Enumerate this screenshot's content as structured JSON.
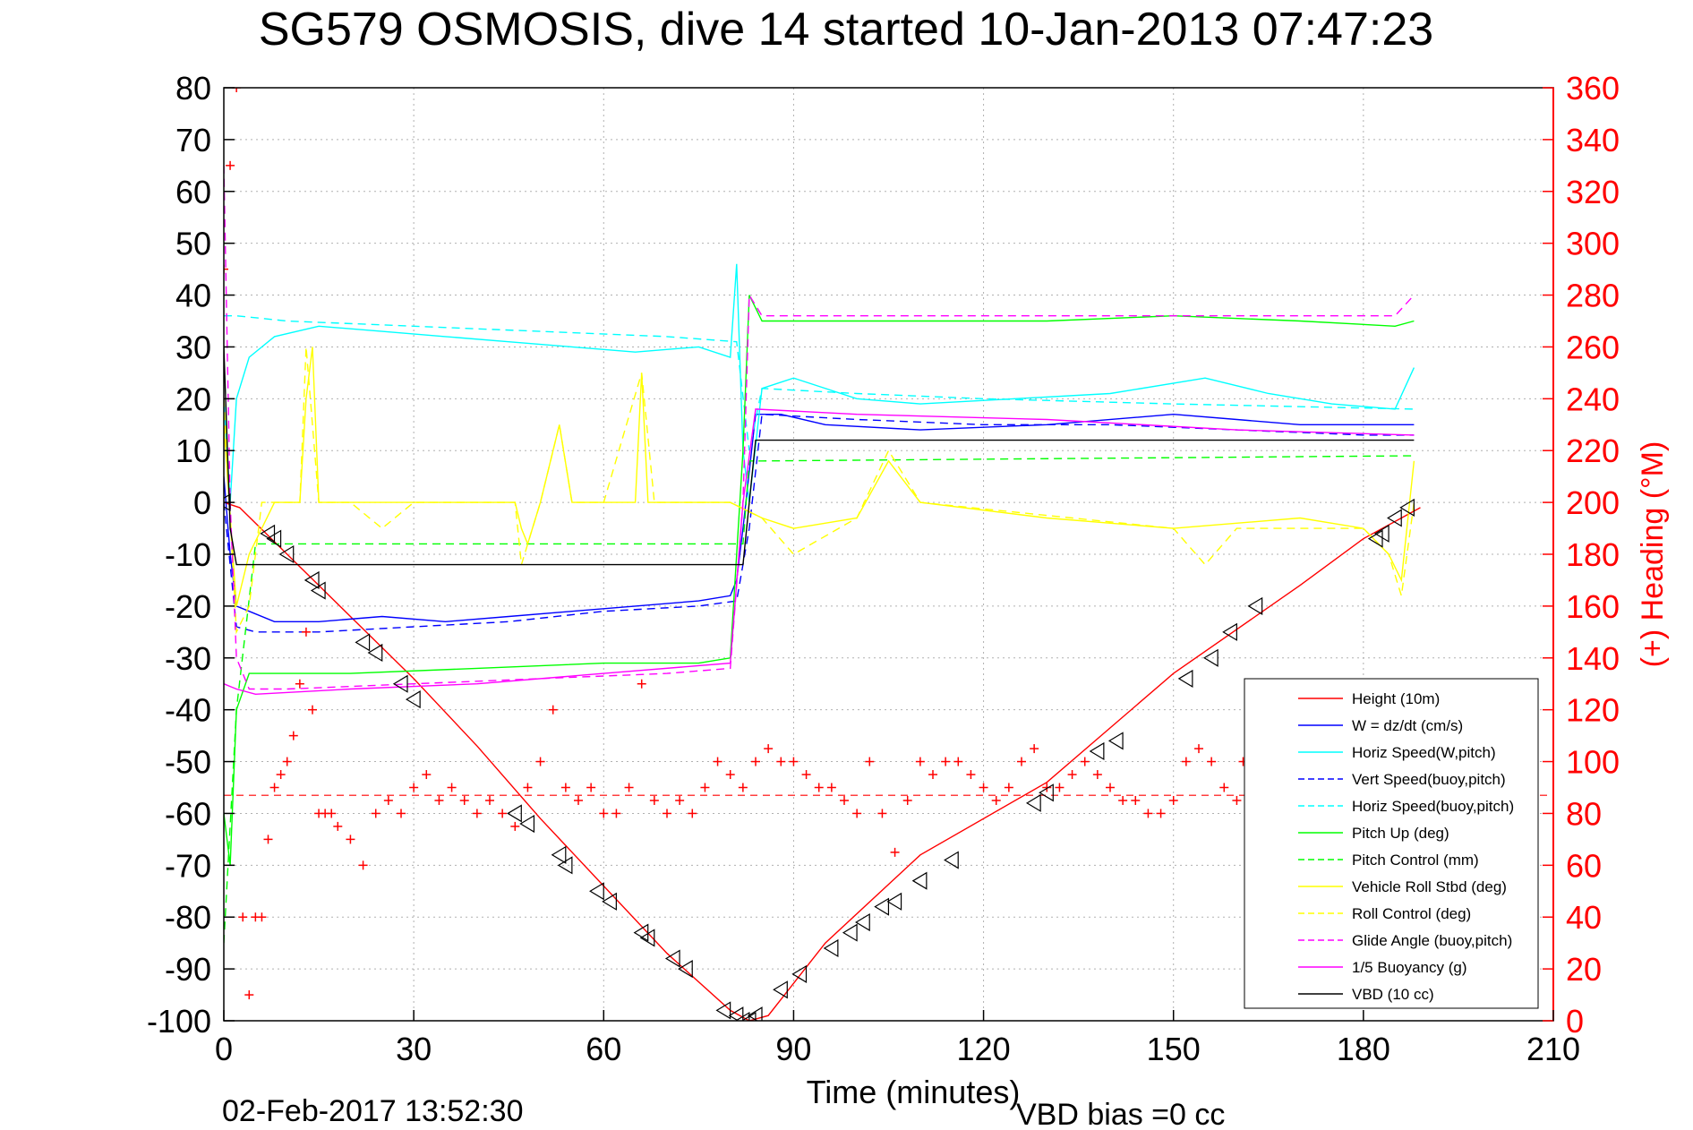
{
  "title": "SG579 OSMOSIS, dive 14 started 10-Jan-2013 07:47:23",
  "footer": {
    "timestamp": "02-Feb-2017 13:52:30",
    "vbd_bias": "VBD bias =0 cc"
  },
  "colors": {
    "height": "#ff0000",
    "w": "#0000ff",
    "horiz_w": "#00ffff",
    "pitch": "#00ff00",
    "roll": "#ffff00",
    "glide": "#ff00ff",
    "vbd": "#000000",
    "heading": "#ff0000"
  },
  "chart_data": {
    "type": "line",
    "title": "SG579 OSMOSIS, dive 14 started 10-Jan-2013 07:47:23",
    "xlabel": "Time (minutes)",
    "ylabel": "",
    "y2label": "(+) Heading (°M)",
    "xlim": [
      0,
      210
    ],
    "ylim": [
      -100,
      80
    ],
    "y2lim": [
      0,
      360
    ],
    "xticks": [
      0,
      30,
      60,
      90,
      120,
      150,
      180,
      210
    ],
    "yticks": [
      80,
      70,
      60,
      50,
      40,
      30,
      20,
      10,
      0,
      -10,
      -20,
      -30,
      -40,
      -50,
      -60,
      -70,
      -80,
      -90,
      -100
    ],
    "y2ticks": [
      360,
      340,
      320,
      300,
      280,
      260,
      240,
      220,
      200,
      180,
      160,
      140,
      120,
      100,
      80,
      60,
      40,
      20,
      0
    ],
    "grid": true,
    "legend_position": "lower-right",
    "series": [
      {
        "name": "Height (10m)",
        "color": "#ff0000",
        "style": "solid",
        "x": [
          0,
          2.5,
          10,
          20,
          30,
          40,
          50,
          60,
          70,
          80,
          83,
          86,
          95,
          110,
          130,
          150,
          170,
          180,
          186,
          189
        ],
        "y": [
          0,
          -1,
          -10,
          -22,
          -34,
          -47,
          -61,
          -74,
          -87,
          -98,
          -100,
          -99,
          -85,
          -68,
          -54,
          -33,
          -16,
          -7,
          -3,
          -1
        ]
      },
      {
        "name": "W = dz/dt (cm/s)",
        "color": "#0000ff",
        "style": "solid",
        "x": [
          0,
          1,
          2,
          4,
          8,
          15,
          25,
          35,
          45,
          55,
          65,
          75,
          80,
          81,
          82,
          84,
          88,
          95,
          110,
          130,
          150,
          160,
          170,
          180,
          186,
          188
        ],
        "y": [
          5,
          -10,
          -20,
          -21,
          -23,
          -23,
          -22,
          -23,
          -22,
          -21,
          -20,
          -19,
          -18,
          -15,
          -5,
          17,
          17,
          15,
          14,
          15,
          17,
          16,
          15,
          15,
          15,
          15
        ]
      },
      {
        "name": "Horiz Speed(W,pitch)",
        "color": "#00ffff",
        "style": "solid",
        "x": [
          0,
          1,
          2,
          4,
          8,
          15,
          25,
          35,
          45,
          55,
          65,
          75,
          80,
          81,
          82,
          83,
          85,
          90,
          100,
          110,
          125,
          140,
          155,
          165,
          175,
          185,
          188
        ],
        "y": [
          20,
          0,
          20,
          28,
          32,
          34,
          33,
          32,
          31,
          30,
          29,
          30,
          28,
          46,
          10,
          0,
          22,
          24,
          20,
          19,
          20,
          21,
          24,
          21,
          19,
          18,
          26
        ]
      },
      {
        "name": "Vert Speed(buoy,pitch)",
        "color": "#0000ff",
        "style": "dashed",
        "x": [
          0,
          2,
          5,
          15,
          30,
          45,
          60,
          75,
          81,
          83,
          85,
          100,
          120,
          140,
          160,
          180,
          188
        ],
        "y": [
          0,
          -24,
          -25,
          -25,
          -24,
          -23,
          -21,
          -20,
          -19,
          -5,
          17,
          16,
          15,
          15,
          14,
          13,
          13
        ]
      },
      {
        "name": "Horiz Speed(buoy,pitch)",
        "color": "#00ffff",
        "style": "dashed",
        "x": [
          0,
          2,
          10,
          30,
          50,
          70,
          81,
          83,
          85,
          100,
          120,
          150,
          188
        ],
        "y": [
          36,
          36,
          35,
          34,
          33,
          32,
          31,
          10,
          22,
          21,
          20,
          19,
          18
        ]
      },
      {
        "name": "Pitch Up (deg)",
        "color": "#00ff00",
        "style": "solid",
        "x": [
          0,
          1,
          2,
          4,
          10,
          20,
          40,
          60,
          75,
          80,
          82,
          83,
          85,
          90,
          110,
          130,
          150,
          170,
          185,
          188
        ],
        "y": [
          -60,
          -70,
          -40,
          -33,
          -33,
          -33,
          -32,
          -31,
          -31,
          -30,
          10,
          40,
          35,
          35,
          35,
          35,
          36,
          35,
          34,
          35
        ]
      },
      {
        "name": "Pitch Control (mm)",
        "color": "#00ff00",
        "style": "dashed",
        "x": [
          0,
          2,
          5,
          80,
          82,
          83,
          85,
          188
        ],
        "y": [
          -85,
          -40,
          -8,
          -8,
          -8,
          8,
          8,
          9
        ]
      },
      {
        "name": "Vehicle Roll Stbd (deg)",
        "color": "#ffff00",
        "style": "solid",
        "x": [
          0,
          2,
          4,
          6,
          8,
          12,
          13,
          14,
          15,
          20,
          25,
          30,
          40,
          46,
          47,
          48,
          50,
          53,
          55,
          60,
          65,
          66,
          67,
          70,
          80,
          85,
          90,
          100,
          105,
          110,
          130,
          150,
          170,
          180,
          184,
          186,
          188
        ],
        "y": [
          15,
          -20,
          -10,
          -5,
          0,
          0,
          20,
          30,
          0,
          0,
          0,
          0,
          0,
          0,
          -5,
          -8,
          0,
          15,
          0,
          0,
          0,
          25,
          0,
          0,
          0,
          -3,
          -5,
          -3,
          8,
          0,
          -3,
          -5,
          -3,
          -5,
          -10,
          -15,
          8
        ]
      },
      {
        "name": "Roll Control (deg)",
        "color": "#ffff00",
        "style": "dashed",
        "x": [
          0,
          2,
          4,
          6,
          12,
          13,
          15,
          20,
          25,
          30,
          40,
          46,
          47,
          50,
          53,
          55,
          60,
          66,
          68,
          80,
          85,
          90,
          100,
          105,
          110,
          150,
          155,
          160,
          180,
          184,
          186,
          188
        ],
        "y": [
          20,
          -25,
          -20,
          0,
          0,
          30,
          0,
          0,
          -5,
          0,
          0,
          0,
          -12,
          0,
          15,
          0,
          0,
          25,
          0,
          0,
          -3,
          -10,
          -3,
          10,
          0,
          -5,
          -12,
          -5,
          -5,
          -10,
          -18,
          0
        ]
      },
      {
        "name": "Glide Angle (buoy,pitch)",
        "color": "#ff00ff",
        "style": "dashed",
        "x": [
          0,
          1,
          2,
          4,
          10,
          30,
          50,
          70,
          80,
          82,
          83,
          85,
          100,
          130,
          160,
          185,
          188
        ],
        "y": [
          65,
          0,
          -30,
          -36,
          -36,
          -35,
          -34,
          -33,
          -32,
          0,
          40,
          36,
          36,
          36,
          36,
          36,
          40
        ]
      },
      {
        "name": "1/5 Buoyancy (g)",
        "color": "#ff00ff",
        "style": "solid",
        "x": [
          0,
          2,
          5,
          20,
          40,
          60,
          80,
          82,
          84,
          100,
          130,
          160,
          188
        ],
        "y": [
          -35,
          -36,
          -37,
          -36,
          -35,
          -33,
          -31,
          0,
          18,
          17,
          16,
          14,
          13
        ]
      },
      {
        "name": "VBD (10 cc)",
        "color": "#000000",
        "style": "solid",
        "x": [
          0,
          1,
          2,
          3,
          82,
          83,
          84,
          188
        ],
        "y": [
          30,
          -5,
          -12,
          -12,
          -12,
          0,
          12,
          12
        ]
      }
    ],
    "heading": {
      "name": "(+) Heading (°M)",
      "color": "#ff0000",
      "marker": "+",
      "x": [
        0,
        1,
        2,
        3,
        4,
        5,
        6,
        7,
        8,
        9,
        10,
        11,
        12,
        13,
        14,
        15,
        16,
        17,
        18,
        20,
        22,
        24,
        26,
        28,
        30,
        32,
        34,
        36,
        38,
        40,
        42,
        44,
        46,
        48,
        50,
        52,
        54,
        56,
        58,
        60,
        62,
        64,
        66,
        68,
        70,
        72,
        74,
        76,
        78,
        80,
        82,
        84,
        86,
        88,
        90,
        92,
        94,
        96,
        98,
        100,
        102,
        104,
        106,
        108,
        110,
        112,
        114,
        116,
        118,
        120,
        122,
        124,
        126,
        128,
        130,
        132,
        134,
        136,
        138,
        140,
        142,
        144,
        146,
        148,
        150,
        152,
        154,
        156,
        158,
        160,
        161
      ],
      "y": [
        290,
        330,
        360,
        40,
        10,
        40,
        40,
        70,
        90,
        95,
        100,
        110,
        130,
        150,
        120,
        80,
        80,
        80,
        75,
        70,
        60,
        80,
        85,
        80,
        90,
        95,
        85,
        90,
        85,
        80,
        85,
        80,
        75,
        90,
        100,
        120,
        90,
        85,
        90,
        80,
        80,
        90,
        130,
        85,
        80,
        85,
        80,
        90,
        100,
        95,
        90,
        100,
        105,
        100,
        100,
        95,
        90,
        90,
        85,
        80,
        100,
        80,
        65,
        85,
        100,
        95,
        100,
        100,
        95,
        90,
        85,
        90,
        100,
        105,
        90,
        90,
        95,
        100,
        95,
        90,
        85,
        85,
        80,
        80,
        85,
        100,
        105,
        100,
        90,
        85,
        100
      ]
    },
    "heading_mean": 87,
    "markers": {
      "symbol": "triangle-left",
      "x": [
        0,
        7,
        8,
        10,
        14,
        15,
        22,
        24,
        28,
        30,
        46,
        48,
        53,
        54,
        59,
        61,
        66,
        67,
        71,
        73,
        79,
        81,
        82,
        83,
        84,
        88,
        91,
        96,
        99,
        101,
        104,
        106,
        110,
        115,
        128,
        130,
        138,
        141,
        152,
        156,
        159,
        163,
        182,
        183,
        185,
        187
      ],
      "y": [
        0,
        -6,
        -7,
        -10,
        -15,
        -17,
        -27,
        -29,
        -35,
        -38,
        -60,
        -62,
        -68,
        -70,
        -75,
        -77,
        -83,
        -84,
        -88,
        -90,
        -98,
        -99,
        -100,
        -100,
        -99,
        -94,
        -91,
        -86,
        -83,
        -81,
        -78,
        -77,
        -73,
        -69,
        -58,
        -56,
        -48,
        -46,
        -34,
        -30,
        -25,
        -20,
        -7,
        -6,
        -3,
        -1
      ]
    }
  }
}
